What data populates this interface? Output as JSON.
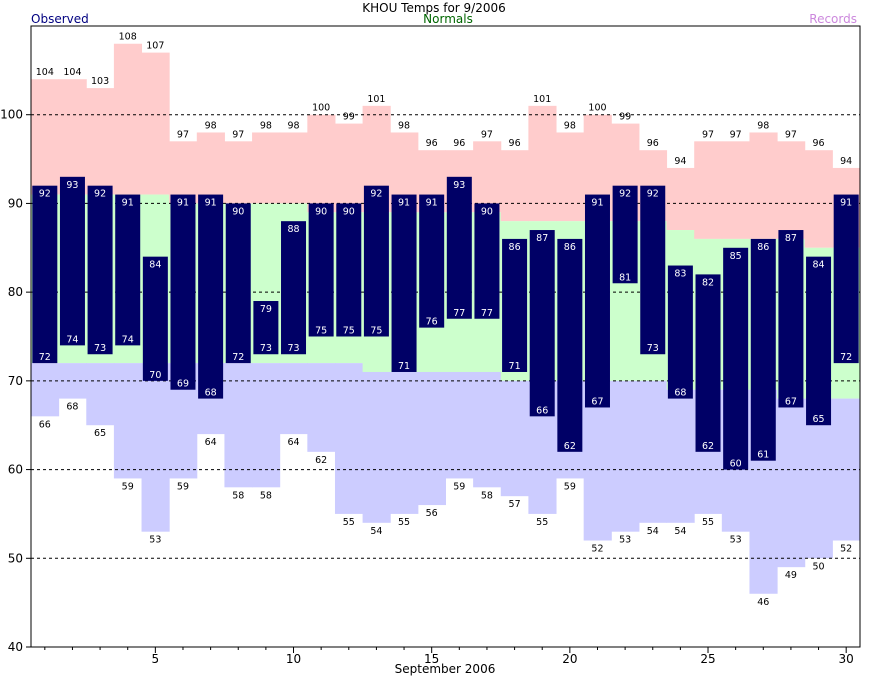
{
  "chart_data": {
    "type": "bar",
    "title": "KHOU Temps for 9/2006",
    "xlabel": "September 2006",
    "ylabel": "",
    "ylim": [
      40,
      110
    ],
    "yticks": [
      40,
      50,
      60,
      70,
      80,
      90,
      100
    ],
    "xticks": [
      5,
      10,
      15,
      20,
      25,
      30
    ],
    "grid": true,
    "legend": {
      "observed": "Observed",
      "normals": "Normals",
      "records": "Records"
    },
    "colors": {
      "observed": "#000066",
      "observed_label": "#ffffff",
      "normals": "#ccffcc",
      "records_high": "#ffcccc",
      "records_low": "#ccccff",
      "legend_observed": "#000080",
      "legend_normals": "#006600",
      "legend_records": "#cc88dd"
    },
    "days": [
      1,
      2,
      3,
      4,
      5,
      6,
      7,
      8,
      9,
      10,
      11,
      12,
      13,
      14,
      15,
      16,
      17,
      18,
      19,
      20,
      21,
      22,
      23,
      24,
      25,
      26,
      27,
      28,
      29,
      30
    ],
    "record_high": [
      104,
      104,
      103,
      108,
      107,
      97,
      98,
      97,
      98,
      98,
      100,
      99,
      101,
      98,
      96,
      96,
      97,
      96,
      101,
      98,
      100,
      99,
      96,
      94,
      97,
      97,
      98,
      97,
      96,
      94
    ],
    "record_low": [
      66,
      68,
      65,
      59,
      53,
      59,
      64,
      58,
      58,
      64,
      62,
      55,
      54,
      55,
      56,
      59,
      58,
      57,
      55,
      59,
      52,
      53,
      54,
      54,
      55,
      53,
      46,
      49,
      50,
      52
    ],
    "normal_high": [
      91,
      91,
      91,
      91,
      91,
      90,
      90,
      90,
      90,
      90,
      89,
      89,
      89,
      89,
      89,
      89,
      89,
      88,
      88,
      88,
      88,
      88,
      88,
      87,
      86,
      86,
      86,
      86,
      85,
      85
    ],
    "normal_low": [
      72,
      72,
      72,
      72,
      72,
      72,
      72,
      72,
      72,
      72,
      72,
      72,
      71,
      71,
      71,
      71,
      71,
      70,
      70,
      70,
      70,
      70,
      70,
      69,
      69,
      69,
      69,
      68,
      68,
      68
    ],
    "observed_high": [
      92,
      93,
      92,
      91,
      84,
      91,
      91,
      90,
      79,
      88,
      90,
      90,
      92,
      91,
      91,
      93,
      90,
      86,
      87,
      86,
      91,
      92,
      92,
      83,
      82,
      85,
      86,
      87,
      84,
      91
    ],
    "observed_low": [
      72,
      74,
      73,
      74,
      70,
      69,
      68,
      72,
      73,
      73,
      75,
      75,
      75,
      71,
      76,
      77,
      77,
      71,
      66,
      62,
      67,
      81,
      73,
      68,
      62,
      60,
      61,
      67,
      65,
      72
    ]
  }
}
